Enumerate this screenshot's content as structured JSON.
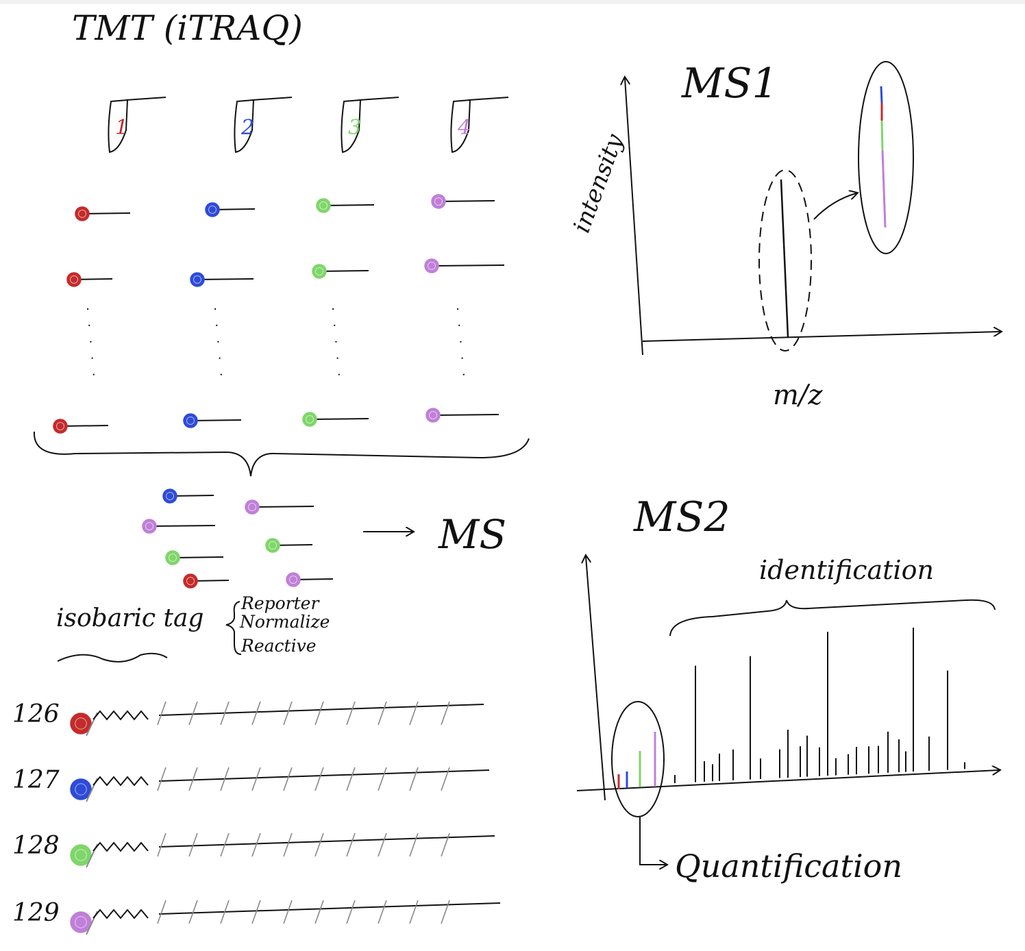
{
  "title": "TMT (iTRAQ)",
  "colors": {
    "red": "#c42b2b",
    "blue": "#2e4bd8",
    "green": "#7fd66a",
    "purple": "#c07fd8",
    "ink": "#111111",
    "bg": "#ffffff"
  },
  "tubes": [
    {
      "label": "1",
      "color": "red"
    },
    {
      "label": "2",
      "color": "blue"
    },
    {
      "label": "3",
      "color": "green"
    },
    {
      "label": "4",
      "color": "purple"
    }
  ],
  "mix_arrow_label": "MS",
  "tag": {
    "label": "isobaric tag",
    "parts": [
      "Reporter",
      "Normalize",
      "Reactive"
    ]
  },
  "reporter_channels": [
    {
      "label": "126",
      "color": "red"
    },
    {
      "label": "127",
      "color": "blue"
    },
    {
      "label": "128",
      "color": "green"
    },
    {
      "label": "129",
      "color": "purple"
    }
  ],
  "ms1": {
    "title": "MS1",
    "ylabel": "intensity",
    "xlabel": "m/z"
  },
  "ms2": {
    "title": "MS2",
    "identification_label": "identification",
    "quantification_label": "Quantification"
  }
}
